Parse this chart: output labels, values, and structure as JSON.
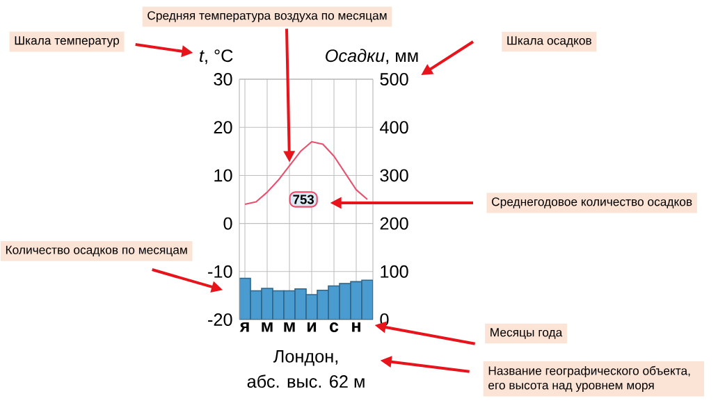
{
  "chart_data": {
    "type": "bar",
    "title": "Лондон,",
    "subtitle": "абс. выс. 62 м",
    "ylabel": "*t*, °C",
    "y2label": "*Осадки*, мм",
    "categories": [
      "я",
      null,
      "м",
      null,
      "м",
      null,
      "и",
      null,
      "с",
      null,
      "н",
      null
    ],
    "series": [
      {
        "axis": "y2",
        "color": "#4a9bd0",
        "values": [
          86,
          60,
          65,
          60,
          60,
          64,
          52,
          61,
          70,
          75,
          79,
          82
        ]
      },
      {
        "type": "line",
        "axis": "y",
        "color": "#e8506e",
        "values": [
          4,
          4.5,
          6.5,
          9,
          12,
          15,
          17,
          16.5,
          14,
          10.5,
          7,
          5
        ]
      }
    ],
    "ylim": [
      -20,
      30
    ],
    "yticks": [
      -20,
      -10,
      0,
      10,
      20,
      30
    ],
    "y2lim": [
      0,
      500
    ],
    "y2ticks": [
      0,
      100,
      200,
      300,
      400,
      500
    ],
    "grid": true,
    "annotations": [
      "Шкала температур",
      "Средняя температура воздуха по месяцам",
      "Шкала осадков",
      "753",
      "Среднегодовое количество осадков",
      "Количество осадков по месяцам",
      "Месяцы года",
      "Название географического объекта, его высота над уровнем моря"
    ]
  }
}
